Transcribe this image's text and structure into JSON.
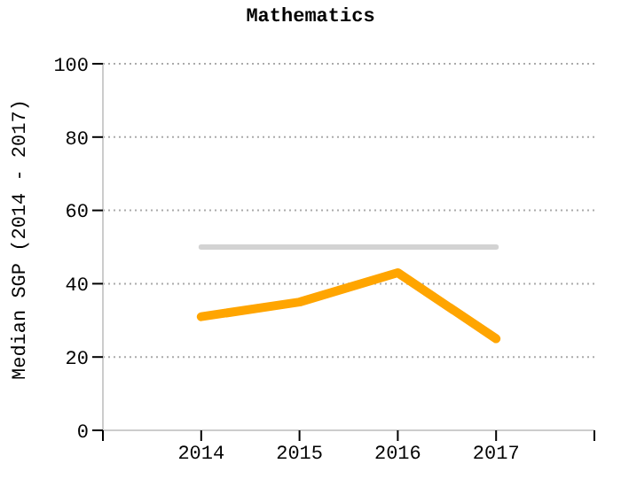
{
  "chart_data": {
    "type": "line",
    "title": "Mathematics",
    "ylabel": "Median SGP (2014 - 2017)",
    "x": [
      2014,
      2015,
      2016,
      2017
    ],
    "xlim": [
      2013,
      2018
    ],
    "xticks": [
      {
        "value": 2013,
        "label": null
      },
      2014,
      2015,
      2016,
      2017,
      {
        "value": 2018,
        "label": null
      }
    ],
    "ylim": [
      0,
      100
    ],
    "yticks": [
      0,
      20,
      40,
      60,
      80,
      100
    ],
    "series": [
      {
        "color": "#d3d3d3",
        "values": [
          50,
          50,
          50,
          50
        ]
      },
      {
        "color": "#ffa500",
        "values": [
          31,
          35,
          43,
          25
        ]
      }
    ],
    "grid": "y",
    "legend": false
  }
}
